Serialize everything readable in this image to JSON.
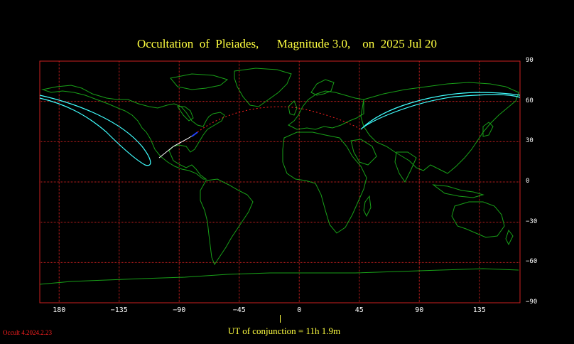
{
  "title": "Occultation  of  Pleiades,      Magnitude 3.0,    on  2025 Jul 20",
  "y_ticks": [
    "90",
    "60",
    "30",
    "0",
    "−30",
    "−60",
    "−90"
  ],
  "x_ticks": [
    "180",
    "−135",
    "−90",
    "−45",
    "0",
    "45",
    "90",
    "135"
  ],
  "ut_label": "UT of conjunction = 11h  1.9m",
  "version": "Occult 4.2024.2.23",
  "colors": {
    "grid": "#cc2020",
    "coast": "#18a018",
    "limit_curve": "#40ffff",
    "central_path": "#ffffff",
    "night_path": "#ff2020",
    "title": "#ffff40"
  }
}
